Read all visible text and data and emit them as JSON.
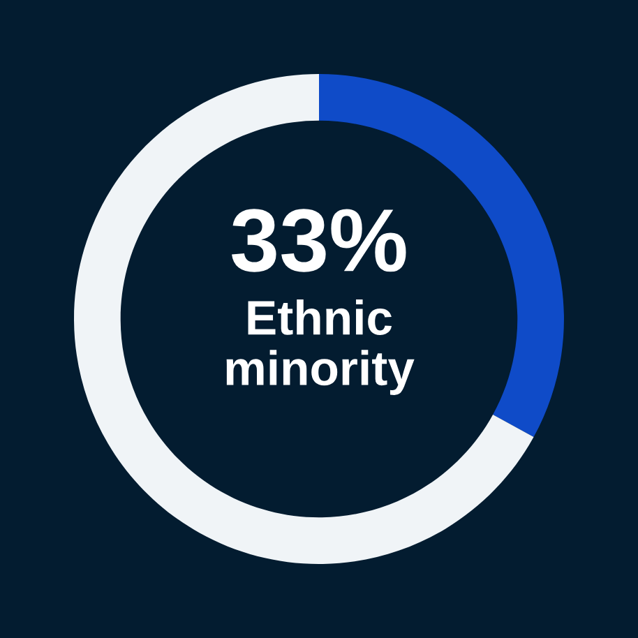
{
  "chart_data": {
    "type": "donut",
    "categories": [
      "Ethnic minority",
      null
    ],
    "values": [
      33,
      67
    ],
    "colors": [
      "#0f4bc8",
      "#f0f4f7"
    ],
    "value_labels": [
      "33%",
      null
    ],
    "legend": false
  }
}
